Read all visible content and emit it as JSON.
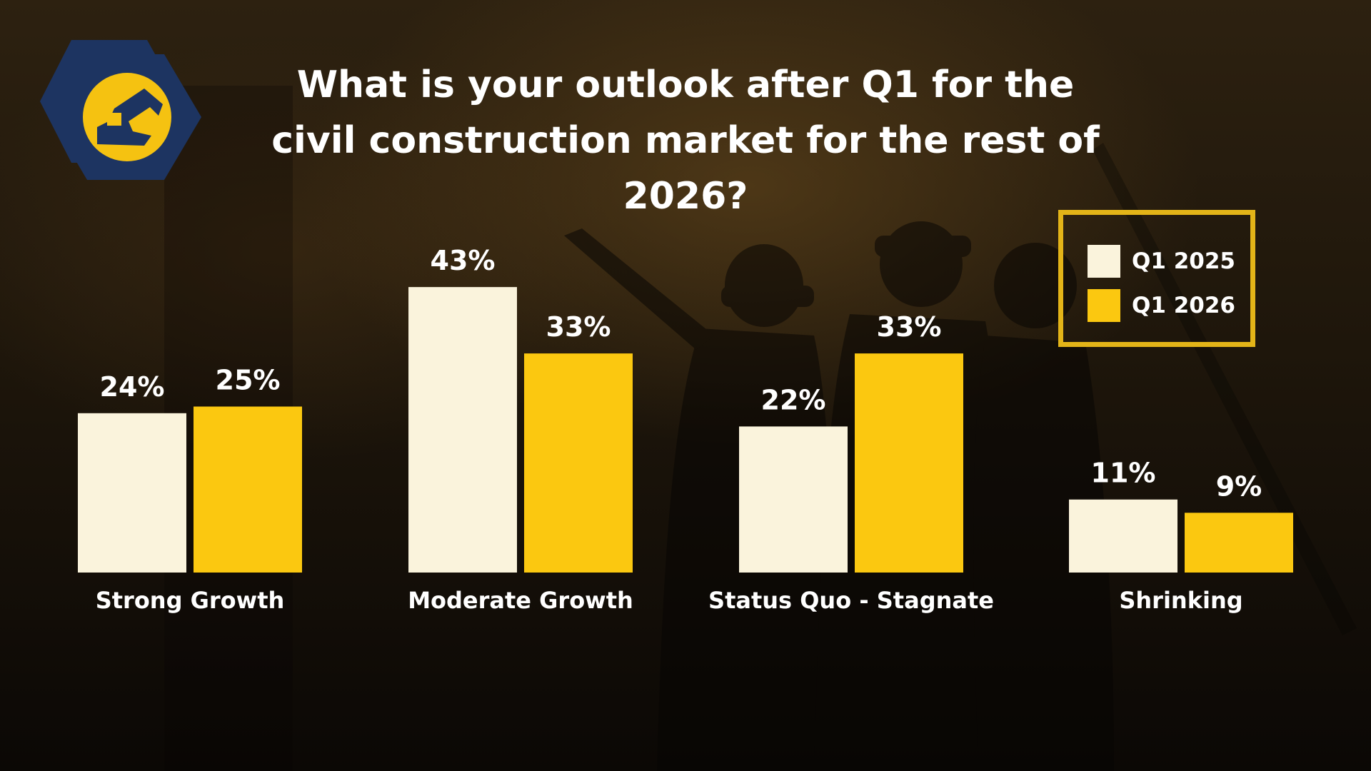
{
  "title": "What is your outlook after Q1 for the civil construction market for the rest of 2026?",
  "colors": {
    "q1_2025": "#faf3dc",
    "q1_2026": "#fbc810",
    "legend_border": "#e3b418",
    "logo_navy": "#1d3461",
    "logo_yellow": "#f5c211"
  },
  "chart_data": {
    "type": "bar",
    "categories": [
      "Strong Growth",
      "Moderate Growth",
      "Status Quo - Stagnate",
      "Shrinking"
    ],
    "series": [
      {
        "name": "Q1 2025",
        "values": [
          24,
          43,
          22,
          11
        ],
        "labels": [
          "24%",
          "43%",
          "22%",
          "11%"
        ]
      },
      {
        "name": "Q1 2026",
        "values": [
          25,
          33,
          33,
          9
        ],
        "labels": [
          "25%",
          "33%",
          "33%",
          "9%"
        ]
      }
    ],
    "value_unit": "%",
    "grid": false,
    "legend_position": "top-right"
  }
}
